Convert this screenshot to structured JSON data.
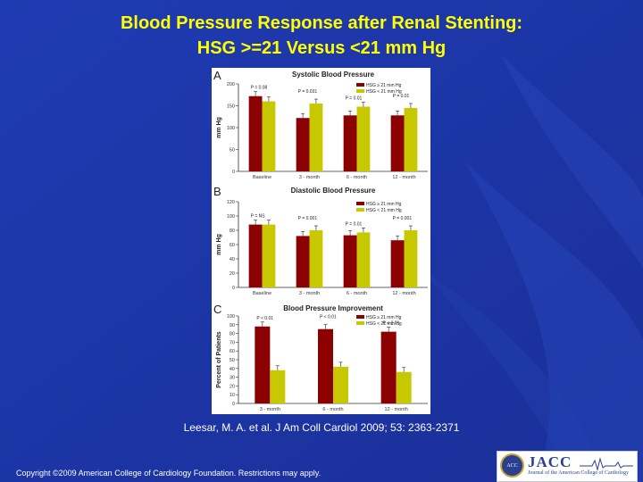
{
  "slide": {
    "title_line1": "Blood Pressure Response after Renal Stenting:",
    "title_line2": "HSG >=21 Versus <21 mm Hg",
    "citation": "Leesar, M. A. et al. J Am Coll Cardiol 2009; 53: 2363-2371",
    "copyright": "Copyright ©2009 American College of Cardiology Foundation. Restrictions may apply.",
    "logo_text": "JACC",
    "logo_subtext": "Journal of the American College of Cardiology",
    "seal_text": "ACC",
    "colors": {
      "background": "#1b33a8",
      "title": "#ffff00",
      "series_high": "#8b0000",
      "series_low": "#c8c800"
    }
  },
  "chart_data": [
    {
      "type": "bar",
      "panel": "A",
      "title": "Systolic Blood Pressure",
      "ylabel": "mm Hg",
      "ylim": [
        0,
        200
      ],
      "yticks": [
        0,
        50,
        100,
        150,
        200
      ],
      "categories": [
        "Baseline",
        "3 - month",
        "6 - month",
        "12 - month"
      ],
      "series": [
        {
          "name": "HSG ≥ 21 mm Hg",
          "values": [
            172,
            122,
            128,
            128
          ]
        },
        {
          "name": "HSG < 21 mm Hg",
          "values": [
            160,
            155,
            148,
            145
          ]
        }
      ],
      "pvalues": [
        "P = 0.08",
        "P = 0.031",
        "P = 0.01",
        "P = 0.01"
      ]
    },
    {
      "type": "bar",
      "panel": "B",
      "title": "Diastolic Blood Pressure",
      "ylabel": "mm Hg",
      "ylim": [
        0,
        120
      ],
      "yticks": [
        0,
        20,
        40,
        60,
        80,
        100,
        120
      ],
      "categories": [
        "Baseline",
        "3 - month",
        "6 - month",
        "12 - month"
      ],
      "series": [
        {
          "name": "HSG ≥ 21 mm Hg",
          "values": [
            88,
            72,
            73,
            66
          ]
        },
        {
          "name": "HSG < 21 mm Hg",
          "values": [
            88,
            80,
            77,
            80
          ]
        }
      ],
      "pvalues": [
        "P = NS",
        "P = 0.001",
        "P = 0.01",
        "P = 0.001"
      ]
    },
    {
      "type": "bar",
      "panel": "C",
      "title": "Blood Pressure Improvement",
      "ylabel": "Percent of Patients",
      "ylim": [
        0,
        100
      ],
      "yticks": [
        0,
        10,
        20,
        30,
        40,
        50,
        60,
        70,
        80,
        90,
        100
      ],
      "categories": [
        "3 - month",
        "6 - month",
        "12 - month"
      ],
      "series": [
        {
          "name": "HSG ≥ 21 mm Hg",
          "values": [
            88,
            85,
            82
          ]
        },
        {
          "name": "HSG < 21 mm Hg",
          "values": [
            38,
            42,
            36
          ]
        }
      ],
      "pvalues": [
        "P < 0.01",
        "P < 0.01",
        "P < 0.01"
      ]
    }
  ]
}
